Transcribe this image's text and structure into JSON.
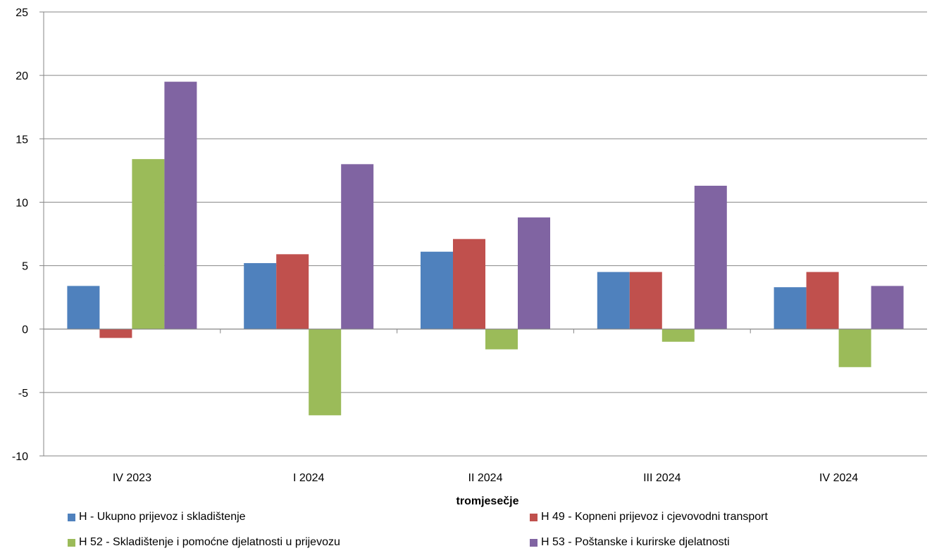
{
  "chart_data": {
    "type": "bar",
    "title": "",
    "xlabel": "tromjesečje",
    "ylabel": "",
    "ylim": [
      -10,
      25
    ],
    "yticks": [
      -10,
      -5,
      0,
      5,
      10,
      15,
      20,
      25
    ],
    "grid": true,
    "legend_position": "bottom",
    "categories": [
      "IV 2023",
      "I 2024",
      "II 2024",
      "III 2024",
      "IV 2024"
    ],
    "series": [
      {
        "name": "H - Ukupno prijevoz i skladištenje",
        "color": "#4F81BD",
        "values": [
          3.4,
          5.2,
          6.1,
          4.5,
          3.3
        ]
      },
      {
        "name": "H 49 - Kopneni prijevoz i cjevovodni transport",
        "color": "#C0504D",
        "values": [
          -0.7,
          5.9,
          7.1,
          4.5,
          4.5
        ]
      },
      {
        "name": "H 52 - Skladištenje i pomoćne djelatnosti u prijevozu",
        "color": "#9BBB59",
        "values": [
          13.4,
          -6.8,
          -1.6,
          -1.0,
          -3.0
        ]
      },
      {
        "name": "H 53 - Poštanske i kurirske djelatnosti",
        "color": "#8064A2",
        "values": [
          19.5,
          13.0,
          8.8,
          11.3,
          3.4
        ]
      }
    ]
  }
}
